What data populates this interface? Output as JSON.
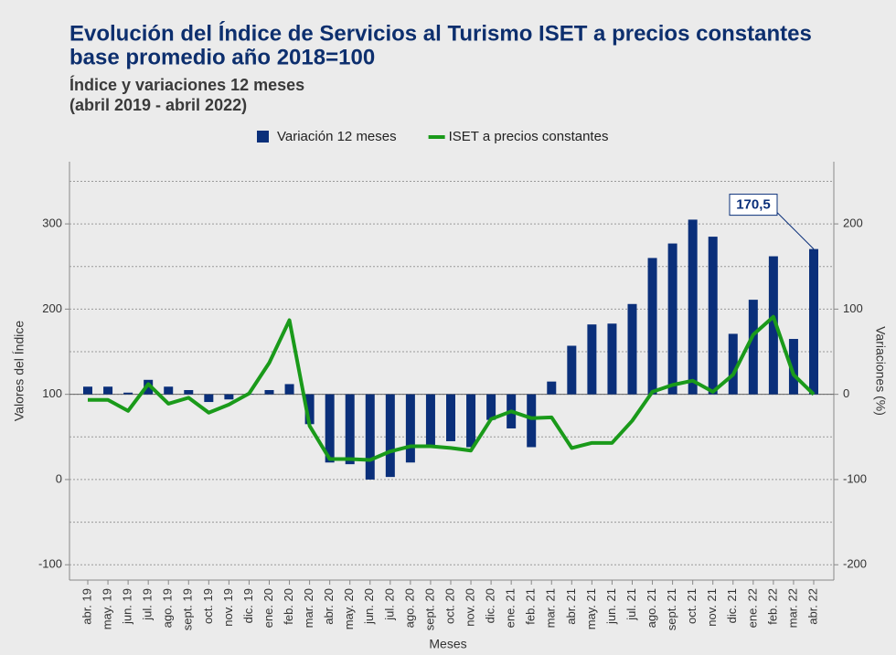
{
  "chart_data": {
    "type": "combo",
    "title": "Evolución del Índice de Servicios al Turismo ISET a precios constantes",
    "title_line2": "base promedio año 2018=100",
    "subtitle": "Índice y variaciones 12 meses",
    "subtitle_line2": "(abril 2019 - abril 2022)",
    "x_label": "Meses",
    "y_label": "Valores del Índice",
    "y2_label": "Variaciones (%)",
    "categories": [
      "abr. 19",
      "may. 19",
      "jun. 19",
      "jul. 19",
      "ago. 19",
      "sept. 19",
      "oct. 19",
      "nov. 19",
      "dic. 19",
      "ene. 20",
      "feb. 20",
      "mar. 20",
      "abr. 20",
      "may. 20",
      "jun. 20",
      "jul. 20",
      "ago. 20",
      "sept. 20",
      "oct. 20",
      "nov. 20",
      "dic. 20",
      "ene. 21",
      "feb. 21",
      "mar. 21",
      "abr. 21",
      "may. 21",
      "jun. 21",
      "jul. 21",
      "ago. 21",
      "sept. 21",
      "oct. 21",
      "nov. 21",
      "dic. 21",
      "ene. 22",
      "feb. 22",
      "mar. 22",
      "abr. 22"
    ],
    "series": [
      {
        "name": "Variación 12 meses",
        "type": "bar",
        "axis": "y2",
        "color": "#0a2f7a",
        "values": [
          9,
          9,
          2,
          17,
          9,
          5,
          -9,
          -6,
          0.5,
          5,
          12,
          -35,
          -80,
          -82,
          -100,
          -97,
          -80,
          -60,
          -55,
          -62,
          -30,
          -40,
          -62,
          15,
          57,
          82,
          83,
          106,
          160,
          177,
          205,
          185,
          71,
          111,
          162,
          65,
          170.5
        ],
        "value_labels": [
          null,
          null,
          null,
          null,
          null,
          null,
          null,
          null,
          null,
          null,
          null,
          null,
          null,
          null,
          null,
          null,
          null,
          null,
          null,
          null,
          null,
          null,
          null,
          null,
          null,
          null,
          null,
          null,
          null,
          null,
          null,
          null,
          null,
          null,
          null,
          null,
          "170,5"
        ]
      },
      {
        "name": "ISET a precios constantes",
        "type": "line",
        "axis": "y",
        "color": "#1a9a1a",
        "values": [
          93.5,
          93.5,
          80.6,
          112,
          89,
          96,
          78.5,
          88,
          101,
          137,
          187,
          63,
          24,
          24,
          23,
          33,
          39,
          39,
          37,
          34,
          71,
          80,
          72,
          73,
          37,
          43,
          43,
          69,
          103,
          111,
          116,
          103,
          123,
          170,
          191,
          123,
          100
        ]
      }
    ],
    "ylim": [
      -118,
      373
    ],
    "yticks": [
      -100,
      0,
      100,
      200,
      300
    ],
    "y2lim": [
      -218,
      273
    ],
    "y2ticks": [
      -200,
      -100,
      0,
      100,
      200
    ],
    "y_minor_grid": [
      -50,
      50,
      150,
      250,
      350
    ],
    "grid": true,
    "legend": "top"
  }
}
